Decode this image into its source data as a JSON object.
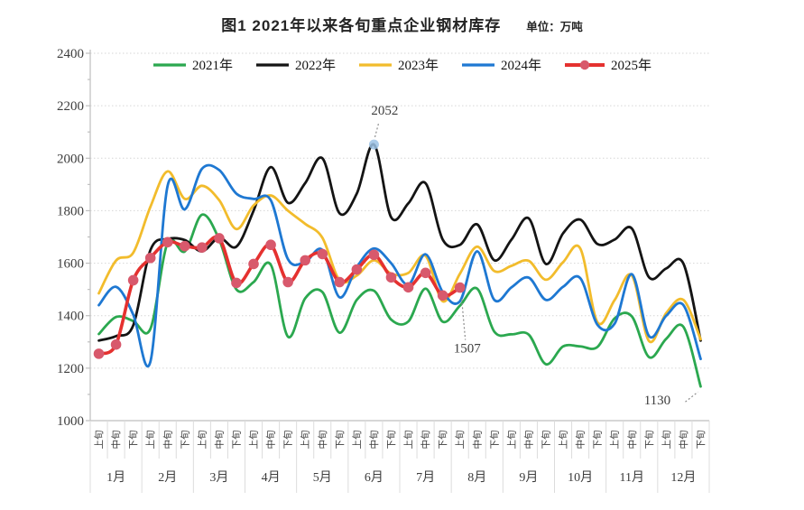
{
  "header": {
    "title": "图1  2021年以来各旬重点企业钢材库存",
    "unit_label": "单位：万吨"
  },
  "colors": {
    "grid": "#d6d6d6",
    "axis": "#bfbfbf",
    "cell_border": "#dcdcdc",
    "annotation_leader": "#8c8c8c",
    "highlight_marker": "#9cc2e5",
    "text": "#3d3d3d"
  },
  "chart_data": {
    "type": "line",
    "title": "图1  2021年以来各旬重点企业钢材库存",
    "unit": "万吨",
    "ylim": [
      1000,
      2400
    ],
    "ytick_step": 200,
    "grid": "horizontal-dotted",
    "legend_position": "top",
    "months": [
      "1月",
      "2月",
      "3月",
      "4月",
      "5月",
      "6月",
      "7月",
      "8月",
      "9月",
      "10月",
      "11月",
      "12月"
    ],
    "periods": [
      "上旬",
      "中旬",
      "下旬"
    ],
    "yticks": [
      1000,
      1200,
      1400,
      1600,
      1800,
      2000,
      2200,
      2400
    ],
    "series": [
      {
        "name": "2021年",
        "color": "#2ba84f",
        "marker": "none",
        "values": [
          1330,
          1395,
          1380,
          1350,
          1678,
          1645,
          1785,
          1690,
          1500,
          1528,
          1594,
          1320,
          1466,
          1490,
          1335,
          1460,
          1495,
          1385,
          1378,
          1503,
          1377,
          1438,
          1503,
          1339,
          1329,
          1328,
          1215,
          1283,
          1283,
          1281,
          1390,
          1397,
          1242,
          1312,
          1357,
          1130
        ]
      },
      {
        "name": "2022年",
        "color": "#141414",
        "marker": "none",
        "values": [
          1305,
          1322,
          1363,
          1650,
          1692,
          1688,
          1645,
          1697,
          1663,
          1800,
          1966,
          1830,
          1905,
          2000,
          1790,
          1865,
          2052,
          1775,
          1828,
          1905,
          1690,
          1670,
          1748,
          1611,
          1690,
          1771,
          1597,
          1714,
          1766,
          1673,
          1690,
          1732,
          1546,
          1580,
          1598,
          1305
        ]
      },
      {
        "name": "2023年",
        "color": "#f2bc2c",
        "marker": "none",
        "values": [
          1485,
          1610,
          1640,
          1815,
          1950,
          1845,
          1895,
          1840,
          1730,
          1820,
          1858,
          1800,
          1750,
          1697,
          1535,
          1553,
          1611,
          1560,
          1563,
          1628,
          1455,
          1560,
          1663,
          1570,
          1590,
          1609,
          1537,
          1604,
          1656,
          1375,
          1460,
          1553,
          1303,
          1410,
          1460,
          1310
        ]
      },
      {
        "name": "2024年",
        "color": "#1e78d2",
        "marker": "none",
        "values": [
          1440,
          1510,
          1404,
          1225,
          1895,
          1805,
          1960,
          1955,
          1865,
          1845,
          1840,
          1615,
          1605,
          1650,
          1470,
          1585,
          1656,
          1600,
          1518,
          1634,
          1490,
          1455,
          1645,
          1460,
          1508,
          1545,
          1460,
          1510,
          1543,
          1365,
          1370,
          1558,
          1322,
          1400,
          1440,
          1235
        ]
      },
      {
        "name": "2025年",
        "color": "#e5312f",
        "marker": "circle",
        "marker_color": "#d8596c",
        "values": [
          1255,
          1290,
          1535,
          1620,
          1680,
          1665,
          1660,
          1695,
          1525,
          1597,
          1670,
          1528,
          1611,
          1635,
          1528,
          1576,
          1632,
          1546,
          1508,
          1563,
          1477,
          1507
        ]
      }
    ],
    "annotations": [
      {
        "text": "2052",
        "series": "2022年",
        "index": 16,
        "highlighted_point": true
      },
      {
        "text": "1507",
        "series": "2025年",
        "index": 21,
        "highlighted_point": false
      },
      {
        "text": "1130",
        "series": "2021年",
        "index": 35,
        "highlighted_point": false
      }
    ]
  }
}
